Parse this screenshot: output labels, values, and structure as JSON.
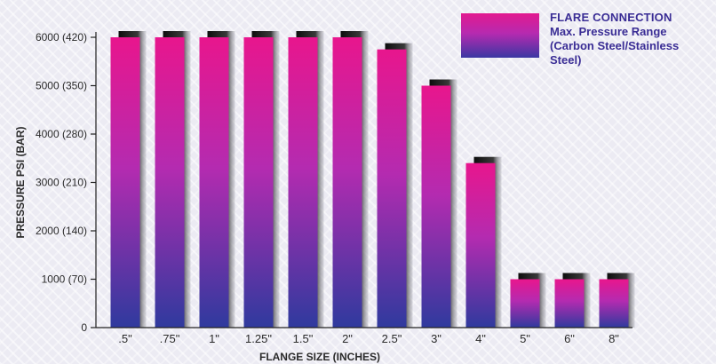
{
  "chart_data": {
    "type": "bar",
    "categories": [
      ".5\"",
      ".75\"",
      "1\"",
      "1.25\"",
      "1.5\"",
      "2\"",
      "2.5\"",
      "3\"",
      "4\"",
      "5\"",
      "6\"",
      "8\""
    ],
    "values": [
      6000,
      6000,
      6000,
      6000,
      6000,
      6000,
      5750,
      5000,
      3400,
      1000,
      1000,
      1000
    ],
    "xlabel": "FLANGE SIZE (INCHES)",
    "ylabel": "PRESSURE PSI (BAR)",
    "ylim": [
      0,
      6200
    ],
    "yticks": [
      {
        "value": 0,
        "label": "0"
      },
      {
        "value": 1000,
        "label": "1000 (70)"
      },
      {
        "value": 2000,
        "label": "2000 (140)"
      },
      {
        "value": 3000,
        "label": "3000 (210)"
      },
      {
        "value": 4000,
        "label": "4000 (280)"
      },
      {
        "value": 5000,
        "label": "5000 (350)"
      },
      {
        "value": 6000,
        "label": "6000 (420)"
      }
    ],
    "grid": false,
    "legend": {
      "placement": "top-right",
      "title": "FLARE CONNECTION",
      "lines": [
        "Max. Pressure Range",
        "(Carbon Steel/Stainless",
        "Steel)"
      ]
    },
    "colors": {
      "bar_top": "#e8168d",
      "bar_mid": "#b42bb0",
      "bar_bottom": "#2f3a9e",
      "shadow": "#1a1a1a",
      "axis": "#222222",
      "text": "#2a2a2a",
      "legend_text": "#3a2d95"
    }
  }
}
